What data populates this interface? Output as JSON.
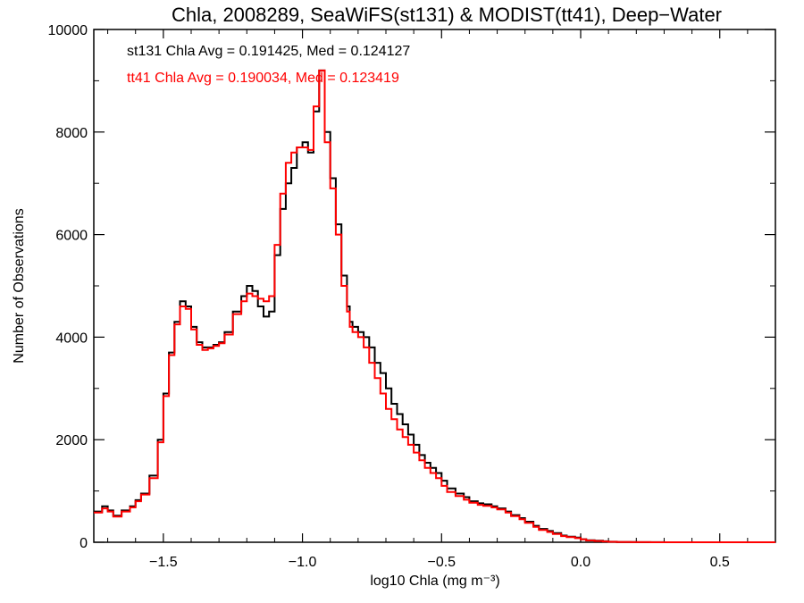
{
  "chart_data": {
    "type": "line",
    "title": "Chla, 2008289, SeaWiFS(st131) & MODIST(tt41), Deep−Water",
    "xlabel": "log10 Chla (mg m⁻³)",
    "ylabel": "Number of Observations",
    "xlim": [
      -1.75,
      0.7
    ],
    "ylim": [
      0,
      10000
    ],
    "x_ticks": [
      -1.5,
      -1.0,
      -0.5,
      0.0,
      0.5
    ],
    "x_tick_labels": [
      "−1.5",
      "−1.0",
      "−0.5",
      "0.0",
      "0.5"
    ],
    "y_ticks": [
      0,
      2000,
      4000,
      6000,
      8000,
      10000
    ],
    "y_tick_labels": [
      "0",
      "2000",
      "4000",
      "6000",
      "8000",
      "10000"
    ],
    "grid": false,
    "step": true,
    "annotations": [
      {
        "text": "st131 Chla Avg = 0.191425, Med = 0.124127",
        "color": "#000000"
      },
      {
        "text": "tt41 Chla Avg = 0.190034, Med = 0.123419",
        "color": "#ff0000"
      }
    ],
    "series": [
      {
        "color": "#000000",
        "x": [
          -1.75,
          -1.72,
          -1.7,
          -1.68,
          -1.65,
          -1.62,
          -1.6,
          -1.58,
          -1.55,
          -1.52,
          -1.5,
          -1.48,
          -1.46,
          -1.44,
          -1.42,
          -1.4,
          -1.38,
          -1.36,
          -1.34,
          -1.32,
          -1.3,
          -1.28,
          -1.25,
          -1.22,
          -1.2,
          -1.18,
          -1.16,
          -1.14,
          -1.12,
          -1.1,
          -1.08,
          -1.06,
          -1.04,
          -1.02,
          -1.0,
          -0.98,
          -0.96,
          -0.94,
          -0.92,
          -0.9,
          -0.88,
          -0.86,
          -0.84,
          -0.83,
          -0.82,
          -0.8,
          -0.78,
          -0.76,
          -0.74,
          -0.72,
          -0.7,
          -0.68,
          -0.66,
          -0.64,
          -0.62,
          -0.6,
          -0.58,
          -0.56,
          -0.54,
          -0.52,
          -0.5,
          -0.48,
          -0.45,
          -0.42,
          -0.4,
          -0.37,
          -0.35,
          -0.32,
          -0.3,
          -0.27,
          -0.25,
          -0.22,
          -0.2,
          -0.17,
          -0.15,
          -0.12,
          -0.1,
          -0.07,
          -0.05,
          -0.02,
          0.0,
          0.02,
          0.05,
          0.08,
          0.1,
          0.13,
          0.15,
          0.18,
          0.2,
          0.25,
          0.3,
          0.35,
          0.4,
          0.45,
          0.5,
          0.55,
          0.6,
          0.65,
          0.7
        ],
        "y": [
          600,
          700,
          620,
          520,
          620,
          700,
          820,
          950,
          1300,
          2000,
          2900,
          3700,
          4300,
          4700,
          4600,
          4200,
          3900,
          3800,
          3800,
          3850,
          3900,
          4100,
          4500,
          4800,
          5000,
          4900,
          4600,
          4400,
          4500,
          5600,
          6500,
          7000,
          7300,
          7700,
          7800,
          7600,
          8400,
          9200,
          8000,
          7100,
          6200,
          5200,
          4600,
          4300,
          4200,
          4100,
          4000,
          3800,
          3500,
          3300,
          3000,
          2700,
          2500,
          2300,
          2100,
          1900,
          1700,
          1550,
          1450,
          1350,
          1200,
          1050,
          950,
          880,
          800,
          760,
          740,
          700,
          660,
          600,
          530,
          470,
          400,
          320,
          260,
          220,
          180,
          130,
          110,
          90,
          60,
          40,
          30,
          20,
          10,
          5,
          5,
          3,
          2,
          1,
          0,
          0,
          0,
          0,
          0,
          0,
          0,
          0,
          0
        ]
      },
      {
        "color": "#ff0000",
        "x": [
          -1.75,
          -1.72,
          -1.7,
          -1.68,
          -1.65,
          -1.62,
          -1.6,
          -1.58,
          -1.55,
          -1.52,
          -1.5,
          -1.48,
          -1.46,
          -1.44,
          -1.42,
          -1.4,
          -1.38,
          -1.36,
          -1.34,
          -1.32,
          -1.3,
          -1.28,
          -1.25,
          -1.22,
          -1.2,
          -1.18,
          -1.16,
          -1.14,
          -1.12,
          -1.1,
          -1.08,
          -1.06,
          -1.04,
          -1.02,
          -1.0,
          -0.98,
          -0.96,
          -0.94,
          -0.92,
          -0.9,
          -0.88,
          -0.86,
          -0.84,
          -0.83,
          -0.82,
          -0.8,
          -0.78,
          -0.76,
          -0.74,
          -0.72,
          -0.7,
          -0.68,
          -0.66,
          -0.64,
          -0.62,
          -0.6,
          -0.58,
          -0.56,
          -0.54,
          -0.52,
          -0.5,
          -0.48,
          -0.45,
          -0.42,
          -0.4,
          -0.37,
          -0.35,
          -0.32,
          -0.3,
          -0.27,
          -0.25,
          -0.22,
          -0.2,
          -0.17,
          -0.15,
          -0.12,
          -0.1,
          -0.07,
          -0.05,
          -0.02,
          0.0,
          0.02,
          0.05,
          0.08,
          0.1,
          0.13,
          0.15,
          0.18,
          0.2,
          0.25,
          0.3,
          0.35,
          0.4,
          0.45,
          0.5,
          0.55,
          0.6,
          0.65,
          0.7
        ],
        "y": [
          580,
          660,
          600,
          500,
          600,
          680,
          800,
          930,
          1250,
          1950,
          2850,
          3650,
          4250,
          4600,
          4550,
          4150,
          3850,
          3750,
          3780,
          3830,
          3880,
          4050,
          4450,
          4700,
          4850,
          4800,
          4750,
          4700,
          4800,
          5800,
          6800,
          7400,
          7600,
          7700,
          7700,
          7650,
          8500,
          9200,
          7800,
          6900,
          6000,
          5000,
          4500,
          4200,
          4100,
          4000,
          3800,
          3500,
          3200,
          2900,
          2600,
          2400,
          2200,
          2050,
          1900,
          1750,
          1600,
          1450,
          1350,
          1250,
          1100,
          980,
          900,
          830,
          770,
          730,
          710,
          680,
          640,
          580,
          510,
          450,
          380,
          300,
          240,
          200,
          160,
          120,
          100,
          80,
          55,
          35,
          25,
          15,
          8,
          4,
          4,
          2,
          1,
          0,
          0,
          0,
          0,
          0,
          0,
          0,
          0,
          0,
          0
        ]
      }
    ]
  }
}
